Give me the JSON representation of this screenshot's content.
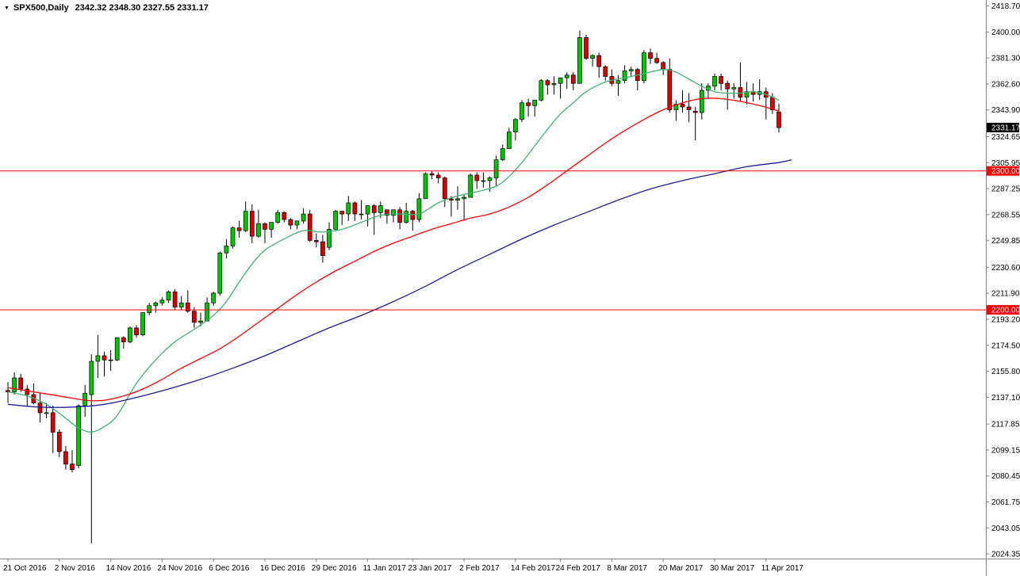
{
  "title": {
    "collapse_icon": "▼",
    "symbol_timeframe": "SPX500,Daily",
    "ohlc": "2342.32 2348.30 2327.55 2331.17"
  },
  "chart_data": {
    "type": "candlestick",
    "symbol": "SPX500",
    "timeframe": "Daily",
    "last_bar": {
      "open": 2342.32,
      "high": 2348.3,
      "low": 2327.55,
      "close": 2331.17
    },
    "y_range": {
      "top": 2423.0,
      "bottom": 2021.0
    },
    "y_ticks": [
      "2418.70",
      "2400.00",
      "2381.30",
      "2362.60",
      "2343.90",
      "2324.65",
      "2305.95",
      "2287.25",
      "2268.55",
      "2249.85",
      "2230.60",
      "2211.90",
      "2193.20",
      "2174.50",
      "2155.80",
      "2137.10",
      "2117.85",
      "2099.15",
      "2080.45",
      "2061.75",
      "2043.05",
      "2024.35"
    ],
    "x_labels": [
      {
        "i": 0,
        "label": "21 Oct 2016"
      },
      {
        "i": 8,
        "label": "2 Nov 2016"
      },
      {
        "i": 16,
        "label": "14 Nov 2016"
      },
      {
        "i": 24,
        "label": "24 Nov 2016"
      },
      {
        "i": 32,
        "label": "6 Dec 2016"
      },
      {
        "i": 40,
        "label": "16 Dec 2016"
      },
      {
        "i": 48,
        "label": "29 Dec 2016"
      },
      {
        "i": 56,
        "label": "11 Jan 2017"
      },
      {
        "i": 63,
        "label": "23 Jan 2017"
      },
      {
        "i": 71,
        "label": "2 Feb 2017"
      },
      {
        "i": 79,
        "label": "14 Feb 2017"
      },
      {
        "i": 86,
        "label": "24 Feb 2017"
      },
      {
        "i": 94,
        "label": "8 Mar 2017"
      },
      {
        "i": 102,
        "label": "20 Mar 2017"
      },
      {
        "i": 110,
        "label": "30 Mar 2017"
      },
      {
        "i": 118,
        "label": "11 Apr 2017"
      }
    ],
    "candles": [
      [
        2142,
        2148,
        2133,
        2141
      ],
      [
        2141,
        2155,
        2139,
        2151
      ],
      [
        2151,
        2154,
        2141,
        2143
      ],
      [
        2143,
        2146,
        2131,
        2139
      ],
      [
        2139,
        2147,
        2132,
        2133
      ],
      [
        2133,
        2140,
        2119,
        2126
      ],
      [
        2126,
        2133,
        2122,
        2126
      ],
      [
        2126,
        2131,
        2097,
        2112
      ],
      [
        2112,
        2114,
        2094,
        2098
      ],
      [
        2098,
        2102,
        2085,
        2089
      ],
      [
        2089,
        2099,
        2083,
        2085
      ],
      [
        2088,
        2132,
        2086,
        2131
      ],
      [
        2131,
        2146,
        2123,
        2140
      ],
      [
        2139,
        2168,
        2032,
        2163
      ],
      [
        2163,
        2182,
        2151,
        2167
      ],
      [
        2167,
        2170,
        2152,
        2164
      ],
      [
        2164,
        2171,
        2156,
        2164
      ],
      [
        2164,
        2180,
        2163,
        2180
      ],
      [
        2180,
        2181,
        2172,
        2177
      ],
      [
        2177,
        2188,
        2176,
        2187
      ],
      [
        2187,
        2189,
        2180,
        2182
      ],
      [
        2182,
        2198,
        2181,
        2198
      ],
      [
        2198,
        2205,
        2196,
        2203
      ],
      [
        2203,
        2206,
        2198,
        2205
      ],
      [
        2205,
        2209,
        2203,
        2207
      ],
      [
        2207,
        2214,
        2205,
        2213
      ],
      [
        2213,
        2215,
        2200,
        2202
      ],
      [
        2202,
        2210,
        2200,
        2205
      ],
      [
        2205,
        2214,
        2198,
        2199
      ],
      [
        2199,
        2202,
        2187,
        2191
      ],
      [
        2191,
        2198,
        2188,
        2192
      ],
      [
        2192,
        2209,
        2192,
        2205
      ],
      [
        2205,
        2213,
        2203,
        2212
      ],
      [
        2212,
        2242,
        2210,
        2241
      ],
      [
        2241,
        2251,
        2237,
        2246
      ],
      [
        2246,
        2260,
        2244,
        2259
      ],
      [
        2259,
        2264,
        2252,
        2257
      ],
      [
        2257,
        2278,
        2256,
        2271
      ],
      [
        2271,
        2276,
        2248,
        2253
      ],
      [
        2253,
        2272,
        2252,
        2262
      ],
      [
        2262,
        2263,
        2248,
        2258
      ],
      [
        2258,
        2263,
        2252,
        2263
      ],
      [
        2263,
        2272,
        2262,
        2270
      ],
      [
        2270,
        2271,
        2263,
        2265
      ],
      [
        2265,
        2266,
        2258,
        2261
      ],
      [
        2261,
        2264,
        2258,
        2264
      ],
      [
        2264,
        2273,
        2262,
        2269
      ],
      [
        2269,
        2272,
        2249,
        2250
      ],
      [
        2250,
        2255,
        2245,
        2249
      ],
      [
        2249,
        2254,
        2234,
        2239
      ],
      [
        2245,
        2263,
        2243,
        2258
      ],
      [
        2258,
        2272,
        2257,
        2271
      ],
      [
        2271,
        2271,
        2261,
        2269
      ],
      [
        2269,
        2282,
        2264,
        2277
      ],
      [
        2277,
        2278,
        2264,
        2269
      ],
      [
        2269,
        2279,
        2265,
        2269
      ],
      [
        2269,
        2275,
        2260,
        2275
      ],
      [
        2275,
        2276,
        2254,
        2270
      ],
      [
        2270,
        2278,
        2266,
        2275
      ],
      [
        2272,
        2272,
        2262,
        2268
      ],
      [
        2268,
        2272,
        2263,
        2272
      ],
      [
        2272,
        2274,
        2258,
        2263
      ],
      [
        2263,
        2277,
        2262,
        2271
      ],
      [
        2271,
        2272,
        2257,
        2265
      ],
      [
        2265,
        2284,
        2263,
        2280
      ],
      [
        2280,
        2299,
        2280,
        2298
      ],
      [
        2298,
        2300,
        2294,
        2297
      ],
      [
        2297,
        2299,
        2291,
        2295
      ],
      [
        2295,
        2296,
        2274,
        2280
      ],
      [
        2280,
        2282,
        2267,
        2279
      ],
      [
        2279,
        2289,
        2272,
        2280
      ],
      [
        2280,
        2283,
        2264,
        2281
      ],
      [
        2281,
        2298,
        2281,
        2297
      ],
      [
        2297,
        2299,
        2287,
        2293
      ],
      [
        2293,
        2299,
        2288,
        2293
      ],
      [
        2293,
        2296,
        2285,
        2295
      ],
      [
        2295,
        2311,
        2289,
        2308
      ],
      [
        2308,
        2319,
        2307,
        2316
      ],
      [
        2316,
        2331,
        2316,
        2328
      ],
      [
        2328,
        2338,
        2322,
        2337
      ],
      [
        2337,
        2351,
        2335,
        2349
      ],
      [
        2349,
        2352,
        2339,
        2347
      ],
      [
        2347,
        2351,
        2339,
        2351
      ],
      [
        2351,
        2366,
        2350,
        2365
      ],
      [
        2365,
        2366,
        2355,
        2362
      ],
      [
        2362,
        2368,
        2355,
        2363
      ],
      [
        2363,
        2367,
        2352,
        2367
      ],
      [
        2367,
        2371,
        2359,
        2369
      ],
      [
        2369,
        2371,
        2358,
        2363
      ],
      [
        2363,
        2401,
        2363,
        2396
      ],
      [
        2396,
        2398,
        2380,
        2381
      ],
      [
        2381,
        2384,
        2375,
        2383
      ],
      [
        2383,
        2385,
        2367,
        2375
      ],
      [
        2375,
        2376,
        2365,
        2368
      ],
      [
        2368,
        2373,
        2361,
        2363
      ],
      [
        2363,
        2369,
        2354,
        2365
      ],
      [
        2365,
        2376,
        2363,
        2372
      ],
      [
        2372,
        2375,
        2368,
        2373
      ],
      [
        2373,
        2374,
        2358,
        2365
      ],
      [
        2365,
        2387,
        2363,
        2385
      ],
      [
        2385,
        2388,
        2377,
        2381
      ],
      [
        2381,
        2385,
        2377,
        2378
      ],
      [
        2378,
        2379,
        2369,
        2373
      ],
      [
        2373,
        2381,
        2342,
        2344
      ],
      [
        2344,
        2351,
        2336,
        2348
      ],
      [
        2348,
        2358,
        2342,
        2346
      ],
      [
        2346,
        2356,
        2335,
        2344
      ],
      [
        2343,
        2346,
        2322,
        2342
      ],
      [
        2342,
        2363,
        2337,
        2358
      ],
      [
        2358,
        2363,
        2352,
        2361
      ],
      [
        2361,
        2370,
        2358,
        2368
      ],
      [
        2368,
        2370,
        2358,
        2363
      ],
      [
        2363,
        2365,
        2344,
        2359
      ],
      [
        2359,
        2363,
        2352,
        2360
      ],
      [
        2360,
        2378,
        2350,
        2353
      ],
      [
        2353,
        2364,
        2348,
        2357
      ],
      [
        2357,
        2363,
        2350,
        2355
      ],
      [
        2355,
        2366,
        2351,
        2357
      ],
      [
        2357,
        2360,
        2337,
        2353
      ],
      [
        2353,
        2356,
        2341,
        2344
      ],
      [
        2342.32,
        2348.3,
        2327.55,
        2331.17
      ]
    ],
    "moving_averages": [
      {
        "name": "fast-ma-line",
        "color": "#3CB371",
        "points": [
          [
            0,
            2141
          ],
          [
            3,
            2138
          ],
          [
            6,
            2132
          ],
          [
            9,
            2122
          ],
          [
            11,
            2115
          ],
          [
            13,
            2112
          ],
          [
            15,
            2116
          ],
          [
            17,
            2124
          ],
          [
            20,
            2147
          ],
          [
            23,
            2164
          ],
          [
            26,
            2177
          ],
          [
            29,
            2186
          ],
          [
            32,
            2196
          ],
          [
            34,
            2206
          ],
          [
            36,
            2220
          ],
          [
            38,
            2233
          ],
          [
            40,
            2243
          ],
          [
            43,
            2251
          ],
          [
            46,
            2257
          ],
          [
            49,
            2256
          ],
          [
            52,
            2258
          ],
          [
            55,
            2263
          ],
          [
            58,
            2268
          ],
          [
            61,
            2269
          ],
          [
            64,
            2269
          ],
          [
            67,
            2277
          ],
          [
            70,
            2282
          ],
          [
            73,
            2285
          ],
          [
            76,
            2289
          ],
          [
            78,
            2296
          ],
          [
            80,
            2306
          ],
          [
            82,
            2318
          ],
          [
            84,
            2330
          ],
          [
            86,
            2341
          ],
          [
            88,
            2349
          ],
          [
            90,
            2357
          ],
          [
            93,
            2364
          ],
          [
            96,
            2367
          ],
          [
            99,
            2370
          ],
          [
            102,
            2373
          ],
          [
            104,
            2371
          ],
          [
            106,
            2366
          ],
          [
            108,
            2361
          ],
          [
            110,
            2357
          ],
          [
            112,
            2356
          ],
          [
            114,
            2356
          ],
          [
            116,
            2357
          ],
          [
            118,
            2355
          ],
          [
            120,
            2351
          ]
        ]
      },
      {
        "name": "medium-ma-line",
        "color": "#FF0000",
        "points": [
          [
            0,
            2144
          ],
          [
            4,
            2141
          ],
          [
            8,
            2138
          ],
          [
            12,
            2135
          ],
          [
            15,
            2135
          ],
          [
            18,
            2138
          ],
          [
            21,
            2143
          ],
          [
            24,
            2150
          ],
          [
            27,
            2158
          ],
          [
            30,
            2165
          ],
          [
            33,
            2172
          ],
          [
            36,
            2181
          ],
          [
            39,
            2191
          ],
          [
            42,
            2201
          ],
          [
            45,
            2211
          ],
          [
            48,
            2220
          ],
          [
            51,
            2228
          ],
          [
            54,
            2235
          ],
          [
            57,
            2242
          ],
          [
            60,
            2248
          ],
          [
            63,
            2253
          ],
          [
            66,
            2258
          ],
          [
            69,
            2262
          ],
          [
            72,
            2266
          ],
          [
            75,
            2269
          ],
          [
            78,
            2274
          ],
          [
            81,
            2281
          ],
          [
            84,
            2290
          ],
          [
            87,
            2300
          ],
          [
            90,
            2310
          ],
          [
            93,
            2320
          ],
          [
            96,
            2329
          ],
          [
            99,
            2337
          ],
          [
            102,
            2344
          ],
          [
            105,
            2349
          ],
          [
            108,
            2352
          ],
          [
            111,
            2352
          ],
          [
            114,
            2350
          ],
          [
            117,
            2347
          ],
          [
            120,
            2343
          ]
        ]
      },
      {
        "name": "slow-ma-line",
        "color": "#1C1C99",
        "points": [
          [
            0,
            2132
          ],
          [
            5,
            2130
          ],
          [
            10,
            2130
          ],
          [
            15,
            2132
          ],
          [
            20,
            2137
          ],
          [
            25,
            2143
          ],
          [
            30,
            2150
          ],
          [
            35,
            2158
          ],
          [
            40,
            2167
          ],
          [
            45,
            2177
          ],
          [
            50,
            2187
          ],
          [
            55,
            2196
          ],
          [
            60,
            2206
          ],
          [
            65,
            2217
          ],
          [
            70,
            2229
          ],
          [
            75,
            2240
          ],
          [
            80,
            2251
          ],
          [
            85,
            2261
          ],
          [
            90,
            2270
          ],
          [
            95,
            2279
          ],
          [
            100,
            2287
          ],
          [
            105,
            2293
          ],
          [
            110,
            2298
          ],
          [
            115,
            2303
          ],
          [
            120,
            2306
          ],
          [
            122,
            2308
          ]
        ]
      }
    ],
    "h_lines": [
      {
        "value": 2300.0,
        "label": "2300.00",
        "color": "#FF0000"
      },
      {
        "value": 2200.0,
        "label": "2200.00",
        "color": "#FF0000"
      }
    ],
    "current_price": {
      "value": 2331.17,
      "label": "2331.17",
      "bg": "#000000"
    },
    "colors": {
      "up": "#00C800",
      "down": "#DE0000",
      "wick": "#000000",
      "background": "#FFFFFF",
      "axis_line": "#808080",
      "axis_text": "#000000"
    }
  }
}
